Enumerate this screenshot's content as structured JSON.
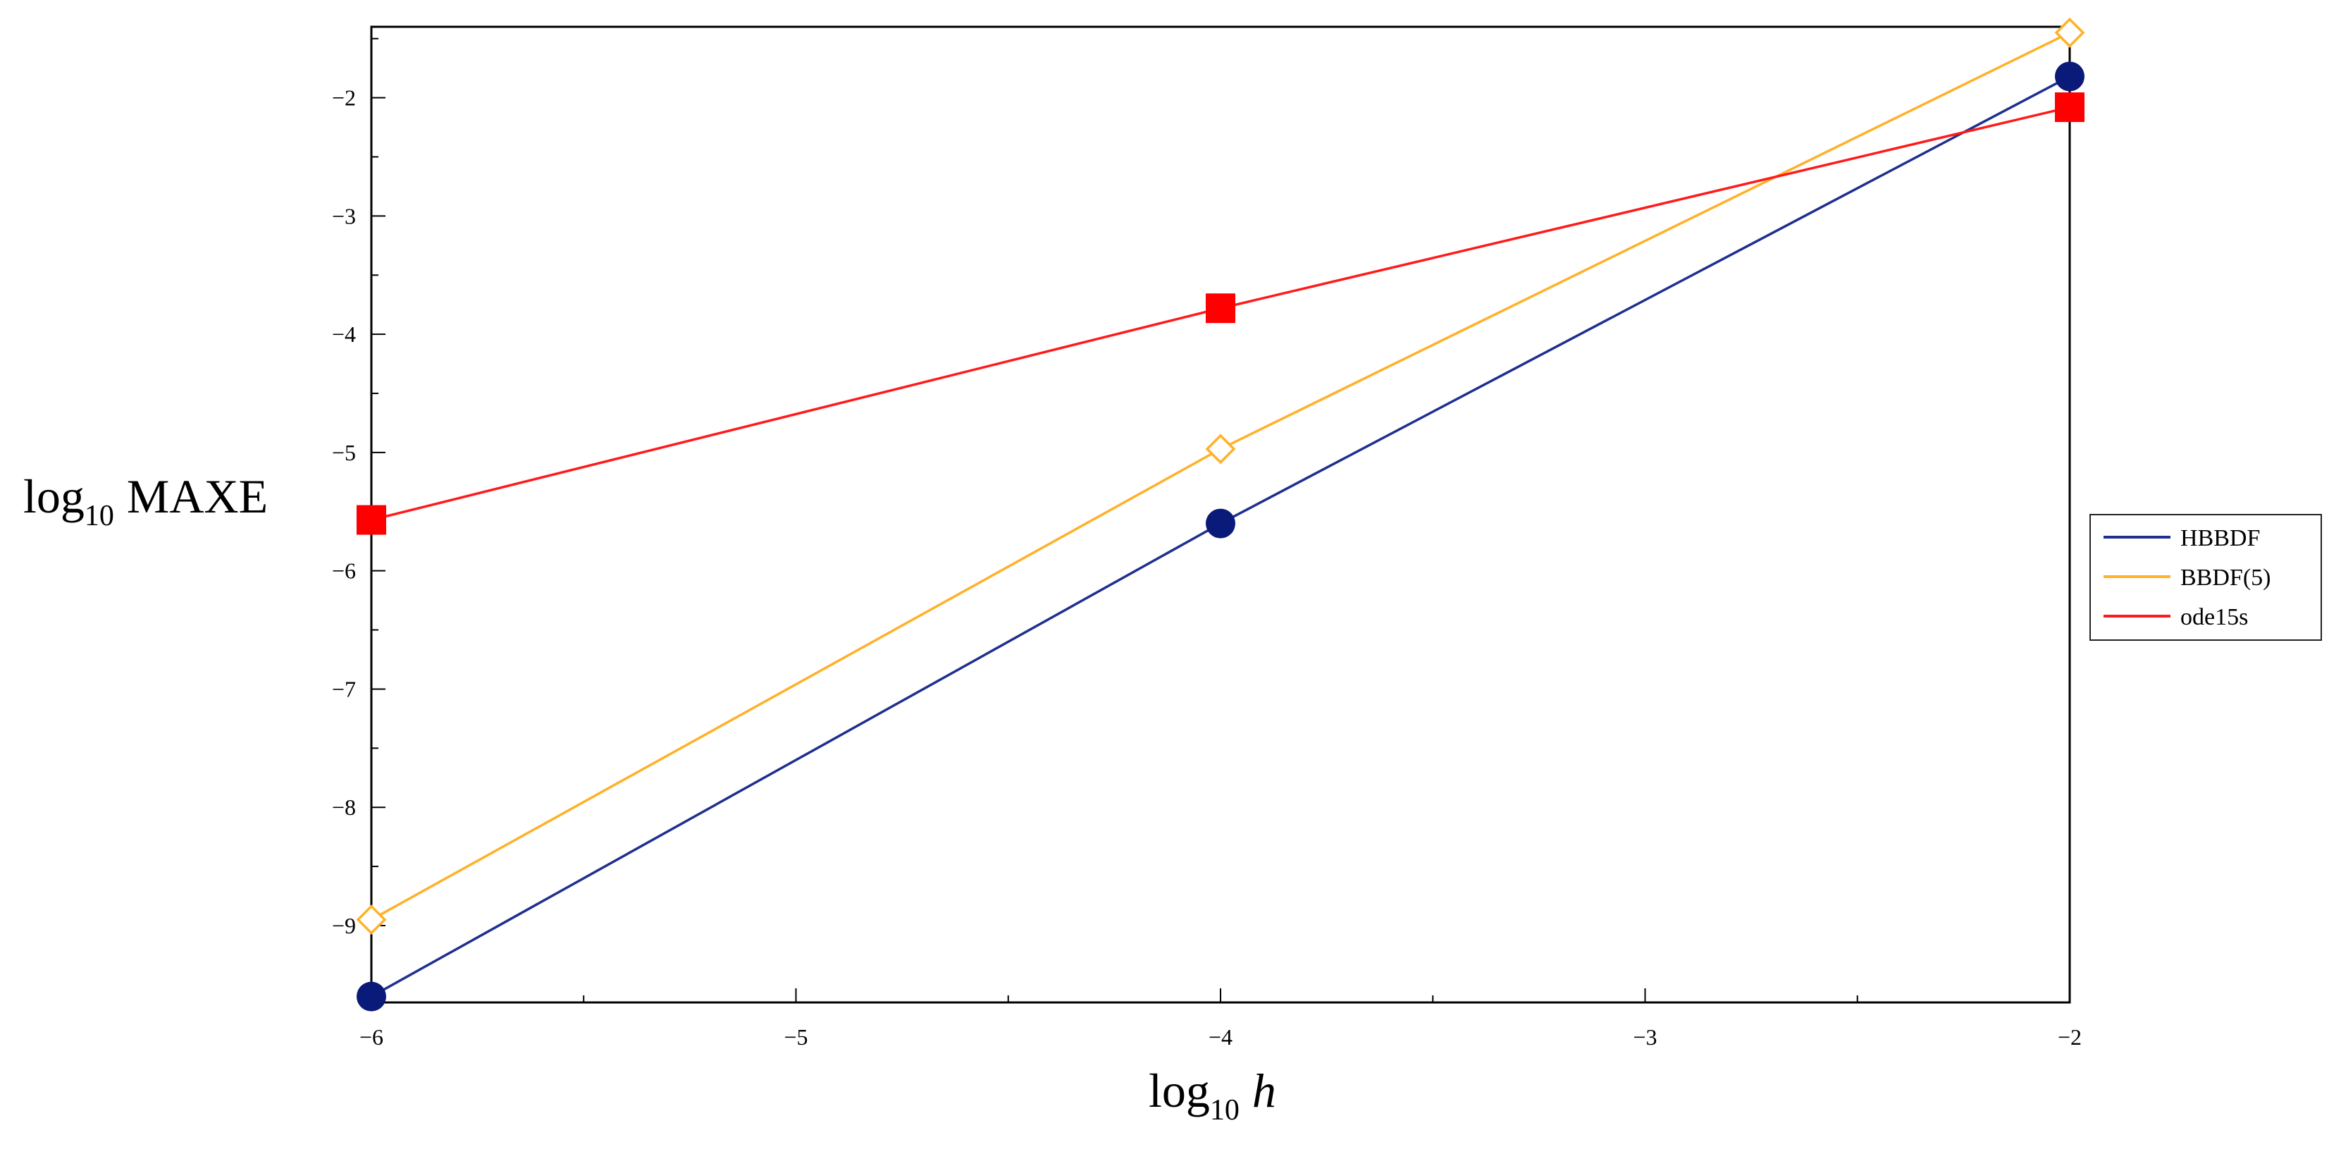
{
  "chart_data": {
    "type": "line",
    "x": [
      -6,
      -4,
      -2
    ],
    "xlim": [
      -6,
      -2
    ],
    "ylim": [
      -9.65,
      -1.4
    ],
    "x_ticks": [
      {
        "v": -6,
        "label": "−6"
      },
      {
        "v": -5,
        "label": "−5"
      },
      {
        "v": -4,
        "label": "−4"
      },
      {
        "v": -3,
        "label": "−3"
      },
      {
        "v": -2,
        "label": "−2"
      }
    ],
    "y_ticks": [
      {
        "v": -2,
        "label": "−2"
      },
      {
        "v": -3,
        "label": "−3"
      },
      {
        "v": -4,
        "label": "−4"
      },
      {
        "v": -5,
        "label": "−5"
      },
      {
        "v": -6,
        "label": "−6"
      },
      {
        "v": -7,
        "label": "−7"
      },
      {
        "v": -8,
        "label": "−8"
      },
      {
        "v": -9,
        "label": "−9"
      }
    ],
    "xlabel": {
      "base": "log",
      "sub": "10",
      "var": "h"
    },
    "ylabel": {
      "base": "log",
      "sub": "10",
      "rest": "MAXE"
    },
    "grid": false,
    "legend_position": "right",
    "series": [
      {
        "name": "HBBDF",
        "values": [
          -9.6,
          -5.6,
          -1.82
        ],
        "color": "#0a1a78",
        "line_color": "#1e2f8f",
        "marker": "circle"
      },
      {
        "name": "BBDF(5)",
        "values": [
          -8.95,
          -4.97,
          -1.45
        ],
        "color": "#ffb128",
        "line_color": "#ffb128",
        "marker": "diamond-open"
      },
      {
        "name": "ode15s",
        "values": [
          -5.57,
          -3.78,
          -2.08
        ],
        "color": "#ff0000",
        "line_color": "#ff1a1a",
        "marker": "square"
      }
    ]
  }
}
